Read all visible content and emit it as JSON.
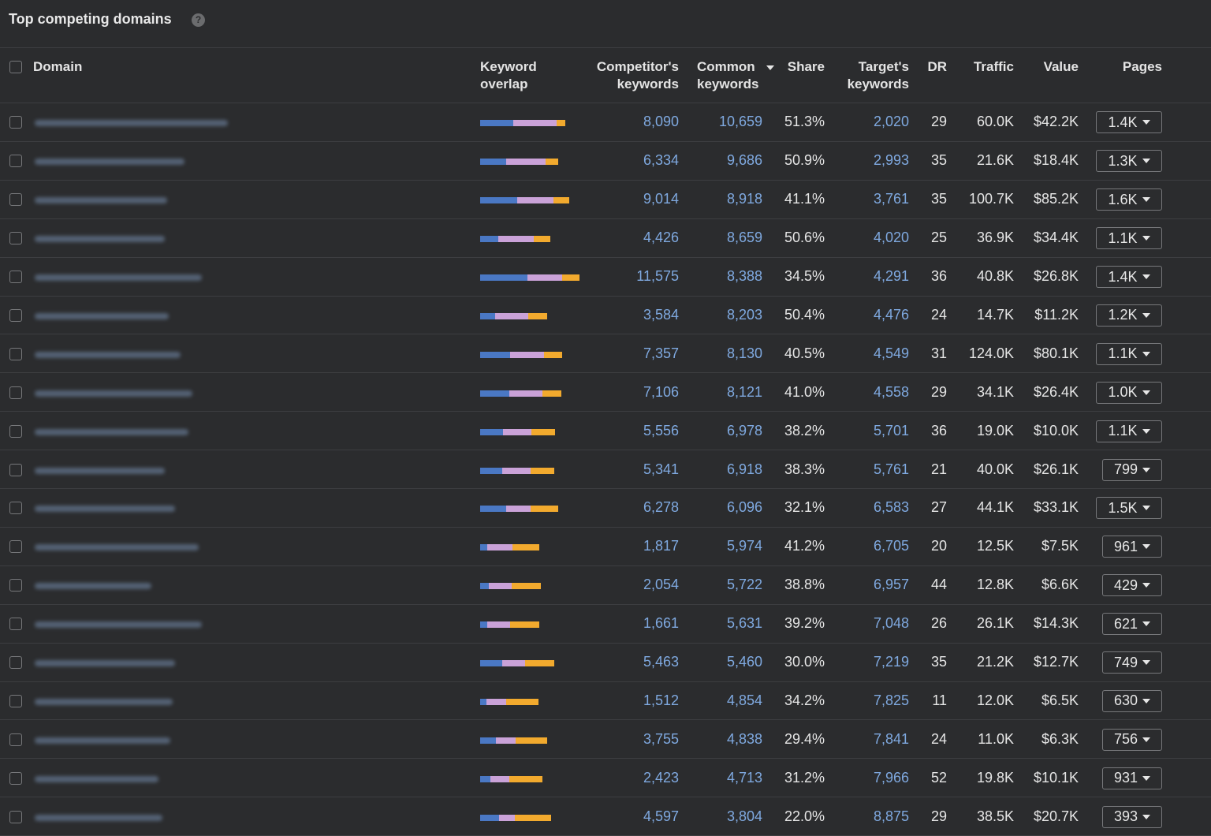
{
  "header": {
    "title": "Top competing domains"
  },
  "columns": {
    "domain": "Domain",
    "overlap": "Keyword overlap",
    "competitor": "Competitor's keywords",
    "common": "Common keywords",
    "share": "Share",
    "target": "Target's keywords",
    "dr": "DR",
    "traffic": "Traffic",
    "value": "Value",
    "pages": "Pages"
  },
  "rows": [
    {
      "competitor": "8,090",
      "common": "10,659",
      "share": "51.3%",
      "target": "2,020",
      "dr": "29",
      "traffic": "60.0K",
      "value": "$42.2K",
      "pages": "1.4K"
    },
    {
      "competitor": "6,334",
      "common": "9,686",
      "share": "50.9%",
      "target": "2,993",
      "dr": "35",
      "traffic": "21.6K",
      "value": "$18.4K",
      "pages": "1.3K"
    },
    {
      "competitor": "9,014",
      "common": "8,918",
      "share": "41.1%",
      "target": "3,761",
      "dr": "35",
      "traffic": "100.7K",
      "value": "$85.2K",
      "pages": "1.6K"
    },
    {
      "competitor": "4,426",
      "common": "8,659",
      "share": "50.6%",
      "target": "4,020",
      "dr": "25",
      "traffic": "36.9K",
      "value": "$34.4K",
      "pages": "1.1K"
    },
    {
      "competitor": "11,575",
      "common": "8,388",
      "share": "34.5%",
      "target": "4,291",
      "dr": "36",
      "traffic": "40.8K",
      "value": "$26.8K",
      "pages": "1.4K"
    },
    {
      "competitor": "3,584",
      "common": "8,203",
      "share": "50.4%",
      "target": "4,476",
      "dr": "24",
      "traffic": "14.7K",
      "value": "$11.2K",
      "pages": "1.2K"
    },
    {
      "competitor": "7,357",
      "common": "8,130",
      "share": "40.5%",
      "target": "4,549",
      "dr": "31",
      "traffic": "124.0K",
      "value": "$80.1K",
      "pages": "1.1K"
    },
    {
      "competitor": "7,106",
      "common": "8,121",
      "share": "41.0%",
      "target": "4,558",
      "dr": "29",
      "traffic": "34.1K",
      "value": "$26.4K",
      "pages": "1.0K"
    },
    {
      "competitor": "5,556",
      "common": "6,978",
      "share": "38.2%",
      "target": "5,701",
      "dr": "36",
      "traffic": "19.0K",
      "value": "$10.0K",
      "pages": "1.1K"
    },
    {
      "competitor": "5,341",
      "common": "6,918",
      "share": "38.3%",
      "target": "5,761",
      "dr": "21",
      "traffic": "40.0K",
      "value": "$26.1K",
      "pages": "799"
    },
    {
      "competitor": "6,278",
      "common": "6,096",
      "share": "32.1%",
      "target": "6,583",
      "dr": "27",
      "traffic": "44.1K",
      "value": "$33.1K",
      "pages": "1.5K"
    },
    {
      "competitor": "1,817",
      "common": "5,974",
      "share": "41.2%",
      "target": "6,705",
      "dr": "20",
      "traffic": "12.5K",
      "value": "$7.5K",
      "pages": "961"
    },
    {
      "competitor": "2,054",
      "common": "5,722",
      "share": "38.8%",
      "target": "6,957",
      "dr": "44",
      "traffic": "12.8K",
      "value": "$6.6K",
      "pages": "429"
    },
    {
      "competitor": "1,661",
      "common": "5,631",
      "share": "39.2%",
      "target": "7,048",
      "dr": "26",
      "traffic": "26.1K",
      "value": "$14.3K",
      "pages": "621"
    },
    {
      "competitor": "5,463",
      "common": "5,460",
      "share": "30.0%",
      "target": "7,219",
      "dr": "35",
      "traffic": "21.2K",
      "value": "$12.7K",
      "pages": "749"
    },
    {
      "competitor": "1,512",
      "common": "4,854",
      "share": "34.2%",
      "target": "7,825",
      "dr": "11",
      "traffic": "12.0K",
      "value": "$6.5K",
      "pages": "630"
    },
    {
      "competitor": "3,755",
      "common": "4,838",
      "share": "29.4%",
      "target": "7,841",
      "dr": "24",
      "traffic": "11.0K",
      "value": "$6.3K",
      "pages": "756"
    },
    {
      "competitor": "2,423",
      "common": "4,713",
      "share": "31.2%",
      "target": "7,966",
      "dr": "52",
      "traffic": "19.8K",
      "value": "$10.1K",
      "pages": "931"
    },
    {
      "competitor": "4,597",
      "common": "3,804",
      "share": "22.0%",
      "target": "8,875",
      "dr": "29",
      "traffic": "38.5K",
      "value": "$20.7K",
      "pages": "393"
    }
  ]
}
